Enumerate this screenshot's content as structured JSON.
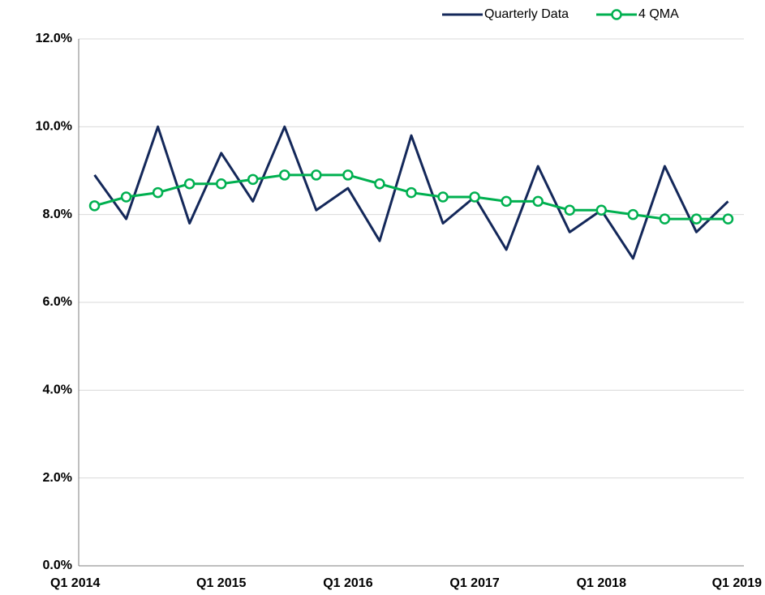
{
  "chart_data": {
    "type": "line",
    "categories": [
      "Q1 2014",
      null,
      null,
      null,
      "Q1 2015",
      null,
      null,
      null,
      "Q1 2016",
      null,
      null,
      null,
      "Q1 2017",
      null,
      null,
      null,
      "Q1 2018",
      null,
      null,
      null,
      "Q1 2019"
    ],
    "series": [
      {
        "name": "Quarterly Data",
        "color": "#14285a",
        "values": [
          8.9,
          7.9,
          10.0,
          7.8,
          9.4,
          8.3,
          10.0,
          8.1,
          8.6,
          7.4,
          9.8,
          7.8,
          8.4,
          7.2,
          9.1,
          7.6,
          8.1,
          7.0,
          9.1,
          7.6,
          8.3
        ]
      },
      {
        "name": "4 QMA",
        "color": "#00b050",
        "marker": "circle",
        "values": [
          8.2,
          8.4,
          8.5,
          8.7,
          8.7,
          8.8,
          8.9,
          8.9,
          8.9,
          8.7,
          8.5,
          8.4,
          8.4,
          8.3,
          8.3,
          8.1,
          8.1,
          8.0,
          7.9,
          7.9,
          7.9
        ]
      }
    ],
    "ylim": [
      0,
      12
    ],
    "yticks": [
      {
        "value": 0,
        "label": "0.0%"
      },
      {
        "value": 2,
        "label": "2.0%"
      },
      {
        "value": 4,
        "label": "4.0%"
      },
      {
        "value": 6,
        "label": "6.0%"
      },
      {
        "value": 8,
        "label": "8.0%"
      },
      {
        "value": 10,
        "label": "10.0%"
      },
      {
        "value": 12,
        "label": "12.0%"
      }
    ],
    "grid": true,
    "legend": "top-right"
  }
}
